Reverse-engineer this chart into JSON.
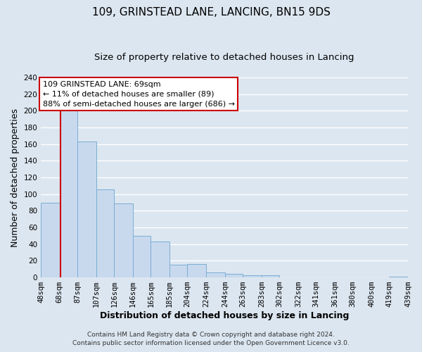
{
  "title": "109, GRINSTEAD LANE, LANCING, BN15 9DS",
  "subtitle": "Size of property relative to detached houses in Lancing",
  "xlabel": "Distribution of detached houses by size in Lancing",
  "ylabel": "Number of detached properties",
  "footnote1": "Contains HM Land Registry data © Crown copyright and database right 2024.",
  "footnote2": "Contains public sector information licensed under the Open Government Licence v3.0.",
  "bin_edges": [
    48,
    68,
    87,
    107,
    126,
    146,
    165,
    185,
    204,
    224,
    244,
    263,
    283,
    302,
    322,
    341,
    361,
    380,
    400,
    419,
    439
  ],
  "bin_labels": [
    "48sqm",
    "68sqm",
    "87sqm",
    "107sqm",
    "126sqm",
    "146sqm",
    "165sqm",
    "185sqm",
    "204sqm",
    "224sqm",
    "244sqm",
    "263sqm",
    "283sqm",
    "302sqm",
    "322sqm",
    "341sqm",
    "361sqm",
    "380sqm",
    "400sqm",
    "419sqm",
    "439sqm"
  ],
  "counts": [
    90,
    200,
    163,
    106,
    89,
    50,
    43,
    15,
    16,
    6,
    4,
    3,
    3,
    0,
    0,
    0,
    0,
    0,
    0,
    1
  ],
  "bar_color": "#c8d9ee",
  "bar_edge_color": "#7aadd4",
  "property_line_x": 69,
  "property_line_color": "#cc0000",
  "annotation_line1": "109 GRINSTEAD LANE: 69sqm",
  "annotation_line2": "← 11% of detached houses are smaller (89)",
  "annotation_line3": "88% of semi-detached houses are larger (686) →",
  "annotation_box_color": "#ffffff",
  "annotation_box_edge": "#cc0000",
  "ylim": [
    0,
    240
  ],
  "yticks": [
    0,
    20,
    40,
    60,
    80,
    100,
    120,
    140,
    160,
    180,
    200,
    220,
    240
  ],
  "background_color": "#dce6f0",
  "plot_bg_color": "#dce6f0",
  "grid_color": "#ffffff",
  "title_fontsize": 11,
  "subtitle_fontsize": 9.5,
  "axis_label_fontsize": 9,
  "tick_fontsize": 7.5,
  "footnote_fontsize": 6.5
}
